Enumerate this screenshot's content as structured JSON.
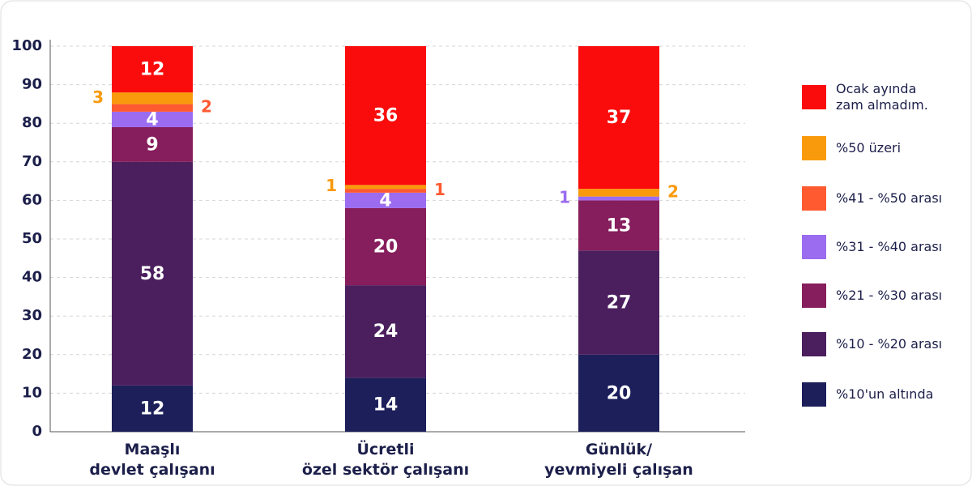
{
  "chart_data": {
    "type": "stacked_bar",
    "categories": [
      "Maaşlı\ndevlet çalışanı",
      "Ücretli\nözel sektör çalışanı",
      "Günlük/\nyevmiyeli çalışan"
    ],
    "series": [
      {
        "name": "%10'un altında",
        "color": "#1c1f5a",
        "values": [
          12,
          14,
          20
        ]
      },
      {
        "name": "%10 - %20 arası",
        "color": "#4b1f5e",
        "values": [
          58,
          24,
          27
        ]
      },
      {
        "name": "%21 - %30 arası",
        "color": "#861d5c",
        "values": [
          9,
          20,
          13
        ]
      },
      {
        "name": "%31 - %40 arası",
        "color": "#9b6cf0",
        "values": [
          4,
          4,
          1
        ]
      },
      {
        "name": "%41 - %50 arası",
        "color": "#ff5a30",
        "values": [
          2,
          1,
          0
        ]
      },
      {
        "name": "%50 üzeri",
        "color": "#f99a0c",
        "values": [
          3,
          1,
          2
        ]
      },
      {
        "name": "Ocak ayında\nzam almadım.",
        "color": "#fa0c0c",
        "values": [
          12,
          36,
          37
        ]
      }
    ],
    "ylim": [
      0,
      100
    ],
    "yticks": [
      0,
      10,
      20,
      30,
      40,
      50,
      60,
      70,
      80,
      90,
      100
    ],
    "grid": true
  }
}
